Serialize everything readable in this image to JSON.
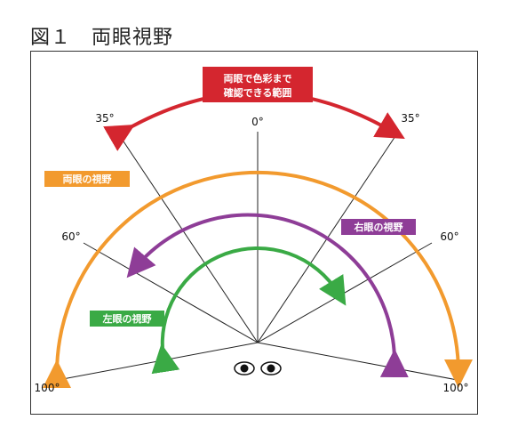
{
  "figure": {
    "title": "図１　両眼視野"
  },
  "angles": {
    "zero": "0°",
    "deg35_left": "35°",
    "deg35_right": "35°",
    "deg60_left": "60°",
    "deg60_right": "60°",
    "deg100_left": "100°",
    "deg100_right": "100°"
  },
  "labels": {
    "color_range_line1": "両眼で色彩まで",
    "color_range_line2": "確認できる範囲",
    "binocular": "両眼の視野",
    "right_eye": "右眼の視野",
    "left_eye": "左眼の視野"
  },
  "colors": {
    "red": "#d4262f",
    "orange": "#f29a2e",
    "purple": "#8e3d97",
    "green": "#3aaa45"
  }
}
